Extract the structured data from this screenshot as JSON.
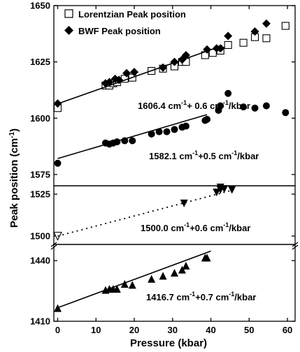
{
  "chart_data": {
    "type": "scatter",
    "xlabel": "Pressure (kbar)",
    "ylabel": "Peak position (cm",
    "ylabel_sup": "-1",
    "ylabel_close": ")",
    "xlim": [
      -1,
      62
    ],
    "x_ticks": [
      "0",
      "10",
      "20",
      "30",
      "40",
      "50",
      "60"
    ],
    "panels": [
      {
        "ylim": [
          1570,
          1650
        ],
        "y_ticks": [
          "1575",
          "1600",
          "1625",
          "1650"
        ],
        "series": [
          {
            "name": "Lorentzian Peak position",
            "marker": "open-square",
            "points": [
              [
                0,
                1604.5
              ],
              [
                12.5,
                1614.5
              ],
              [
                13.5,
                1614.5
              ],
              [
                14.5,
                1615.5
              ],
              [
                15.5,
                1616
              ],
              [
                17.5,
                1617.5
              ],
              [
                19.5,
                1618
              ],
              [
                24.5,
                1621
              ],
              [
                27.5,
                1622
              ],
              [
                30.5,
                1623
              ],
              [
                32.5,
                1625
              ],
              [
                33.5,
                1625
              ],
              [
                38.5,
                1628
              ],
              [
                40.5,
                1629
              ],
              [
                42.5,
                1630
              ],
              [
                44.5,
                1632.5
              ],
              [
                48.5,
                1633.5
              ],
              [
                51.5,
                1636
              ],
              [
                54.5,
                1635.5
              ],
              [
                59.5,
                1641
              ]
            ]
          },
          {
            "name": "BWF Peak position",
            "marker": "filled-diamond",
            "points": [
              [
                0,
                1606.5
              ],
              [
                12.5,
                1615.5
              ],
              [
                13.5,
                1616
              ],
              [
                15,
                1617.5
              ],
              [
                16,
                1617
              ],
              [
                18,
                1620
              ],
              [
                20,
                1620.5
              ],
              [
                27.5,
                1622.5
              ],
              [
                30.5,
                1625
              ],
              [
                32.5,
                1626
              ],
              [
                33.5,
                1628
              ],
              [
                39,
                1630.5
              ],
              [
                41.5,
                1631
              ],
              [
                42.5,
                1631
              ],
              [
                44.5,
                1636.5
              ],
              [
                51.5,
                1638.5
              ],
              [
                54.5,
                1642
              ]
            ]
          },
          {
            "name": "",
            "marker": "filled-circle",
            "points": [
              [
                0,
                1580
              ],
              [
                12.5,
                1589
              ],
              [
                13.5,
                1588.5
              ],
              [
                14.5,
                1589
              ],
              [
                15.5,
                1589.5
              ],
              [
                17.5,
                1590
              ],
              [
                19.5,
                1590
              ],
              [
                24.5,
                1593
              ],
              [
                26.5,
                1594
              ],
              [
                28.5,
                1594
              ],
              [
                30.5,
                1595
              ],
              [
                32.5,
                1596
              ],
              [
                33.5,
                1596.5
              ],
              [
                38.5,
                1599
              ],
              [
                39,
                1599.5
              ],
              [
                42,
                1603.5
              ],
              [
                42.5,
                1605.5
              ],
              [
                44.5,
                1611
              ],
              [
                48.5,
                1605
              ],
              [
                51.5,
                1604.5
              ],
              [
                54.5,
                1605.5
              ],
              [
                59.5,
                1602.5
              ]
            ]
          }
        ],
        "fits": [
          {
            "x": [
              0,
              43
            ],
            "y": [
              1606.4,
              1632.2
            ],
            "style": "solid"
          },
          {
            "x": [
              0,
              39
            ],
            "y": [
              1582.1,
              1601.6
            ],
            "style": "solid"
          }
        ]
      },
      {
        "ylim": [
          1495,
          1530
        ],
        "y_ticks": [
          "1500",
          "1525"
        ],
        "series": [
          {
            "name": "",
            "marker": "filled-triangle-down",
            "points": [
              [
                33,
                1519.5
              ],
              [
                41.5,
                1526
              ],
              [
                42.5,
                1527.5
              ],
              [
                42.5,
                1529
              ],
              [
                43.5,
                1528
              ],
              [
                45.5,
                1527.5
              ]
            ]
          },
          {
            "name": "",
            "marker": "open-triangle-down",
            "points": [
              [
                0,
                1500
              ]
            ]
          }
        ],
        "fits": [
          {
            "x": [
              0,
              46
            ],
            "y": [
              1500.0,
              1527.6
            ],
            "style": "dotted"
          }
        ]
      },
      {
        "ylim": [
          1410,
          1448
        ],
        "y_ticks": [
          "1410",
          "1440"
        ],
        "series": [
          {
            "name": "",
            "marker": "filled-triangle-up",
            "points": [
              [
                0,
                1416.5
              ],
              [
                12.5,
                1425.5
              ],
              [
                13.5,
                1426
              ],
              [
                14.5,
                1426
              ],
              [
                15.5,
                1426
              ],
              [
                17.5,
                1428.5
              ],
              [
                19.5,
                1428
              ],
              [
                24.5,
                1431
              ],
              [
                27.5,
                1432.5
              ],
              [
                30.5,
                1434
              ],
              [
                32.5,
                1435.5
              ],
              [
                33.5,
                1437.5
              ],
              [
                38.5,
                1441.5
              ],
              [
                39,
                1441.5
              ]
            ]
          }
        ],
        "fits": [
          {
            "x": [
              0,
              40
            ],
            "y": [
              1416.7,
              1444.7
            ],
            "style": "solid"
          }
        ]
      }
    ],
    "annotations": [
      {
        "base": "1606.4 cm",
        "sup1": "-1",
        "mid": "+ 0.6 cm",
        "sup2": "-1",
        "tail": "/kbar"
      },
      {
        "base": "1582.1 cm",
        "sup1": "-1",
        "mid": "+0.5 cm",
        "sup2": "-1",
        "tail": "/kbar"
      },
      {
        "base": "1500.0 cm",
        "sup1": "-1",
        "mid": "+0.6 cm",
        "sup2": "-1",
        "tail": "/kbar"
      },
      {
        "base": "1416.7 cm",
        "sup1": "-1",
        "mid": "+0.7 cm",
        "sup2": "-1",
        "tail": "/kbar"
      }
    ],
    "legend": {
      "placement": "top-left",
      "entries": [
        "Lorentzian Peak position",
        "BWF Peak position"
      ]
    },
    "grid": false
  }
}
